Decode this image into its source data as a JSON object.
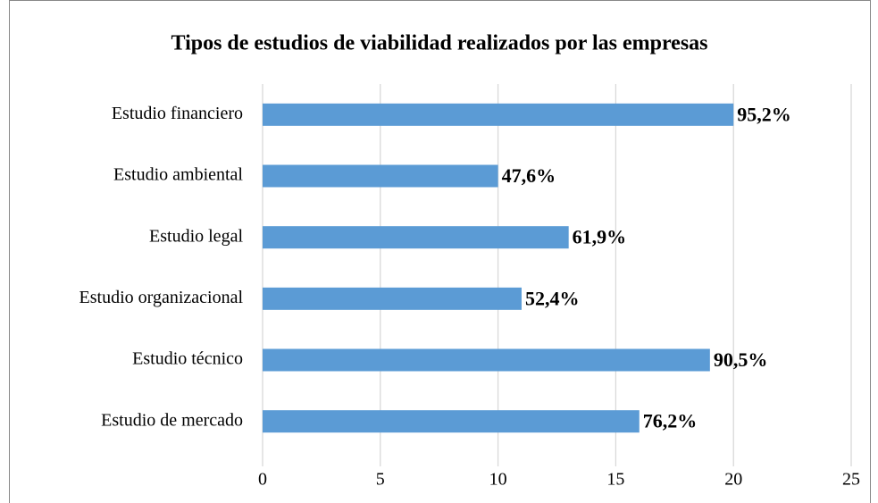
{
  "chart_data": {
    "type": "bar",
    "orientation": "horizontal",
    "title": "Tipos de estudios de viabilidad realizados por las empresas",
    "categories": [
      "Estudio financiero",
      "Estudio ambiental",
      "Estudio legal",
      "Estudio organizacional",
      "Estudio técnico",
      "Estudio de mercado"
    ],
    "values": [
      20,
      10,
      13,
      11,
      19,
      16
    ],
    "value_labels": [
      "95,2%",
      "47,6%",
      "61,9%",
      "52,4%",
      "90,5%",
      "76,2%"
    ],
    "color": "#5b9bd5",
    "xlim": [
      0,
      25
    ],
    "xticks": [
      0,
      5,
      10,
      15,
      20,
      25
    ],
    "grid": true
  }
}
